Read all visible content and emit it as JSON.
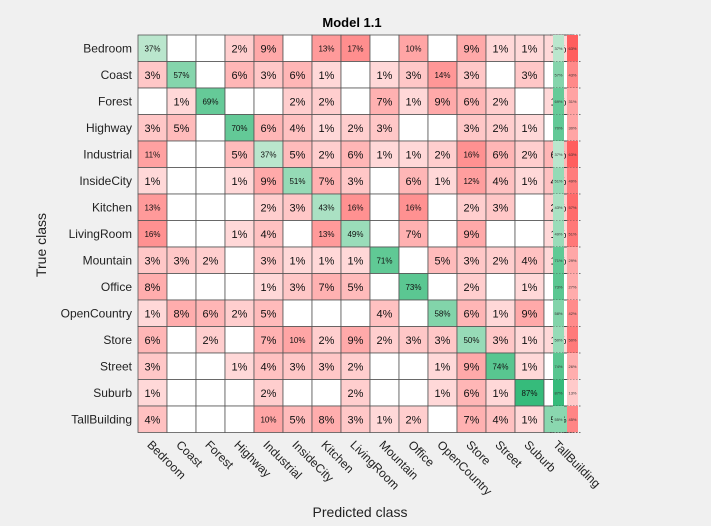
{
  "chart_data": {
    "type": "heatmap",
    "title": "Model 1.1",
    "xlabel": "Predicted class",
    "ylabel": "True class",
    "classes": [
      "Bedroom",
      "Coast",
      "Forest",
      "Highway",
      "Industrial",
      "InsideCity",
      "Kitchen",
      "LivingRoom",
      "Mountain",
      "Office",
      "OpenCountry",
      "Store",
      "Street",
      "Suburb",
      "TallBuilding"
    ],
    "values": [
      [
        37,
        null,
        null,
        2,
        9,
        null,
        13,
        17,
        null,
        10,
        null,
        9,
        1,
        1,
        1
      ],
      [
        3,
        57,
        null,
        6,
        3,
        6,
        1,
        null,
        1,
        3,
        14,
        3,
        null,
        3,
        null
      ],
      [
        null,
        1,
        69,
        null,
        null,
        2,
        2,
        null,
        7,
        1,
        9,
        6,
        2,
        null,
        1
      ],
      [
        3,
        5,
        null,
        70,
        6,
        4,
        1,
        2,
        3,
        null,
        null,
        3,
        2,
        1,
        null
      ],
      [
        11,
        null,
        null,
        5,
        37,
        5,
        2,
        6,
        1,
        1,
        2,
        16,
        6,
        2,
        6
      ],
      [
        1,
        null,
        null,
        1,
        9,
        51,
        7,
        3,
        null,
        6,
        1,
        12,
        4,
        1,
        4
      ],
      [
        13,
        null,
        null,
        null,
        2,
        3,
        43,
        16,
        null,
        16,
        null,
        2,
        3,
        null,
        2
      ],
      [
        16,
        null,
        null,
        1,
        4,
        null,
        13,
        49,
        null,
        7,
        null,
        9,
        null,
        null,
        1
      ],
      [
        3,
        3,
        2,
        null,
        3,
        1,
        1,
        1,
        71,
        null,
        5,
        3,
        2,
        4,
        1
      ],
      [
        8,
        null,
        null,
        null,
        1,
        3,
        7,
        5,
        null,
        73,
        null,
        2,
        null,
        1,
        null
      ],
      [
        1,
        8,
        6,
        2,
        5,
        null,
        null,
        null,
        4,
        null,
        58,
        6,
        1,
        9,
        null
      ],
      [
        6,
        null,
        2,
        null,
        7,
        10,
        2,
        9,
        2,
        3,
        3,
        50,
        3,
        1,
        1
      ],
      [
        3,
        null,
        null,
        1,
        4,
        3,
        3,
        2,
        null,
        null,
        1,
        9,
        74,
        1,
        null
      ],
      [
        1,
        null,
        null,
        null,
        2,
        null,
        null,
        2,
        null,
        null,
        1,
        6,
        1,
        87,
        null
      ],
      [
        4,
        null,
        null,
        null,
        10,
        5,
        8,
        3,
        1,
        2,
        null,
        7,
        4,
        1,
        55
      ]
    ],
    "row_summary": [
      [
        37,
        63
      ],
      [
        57,
        43
      ],
      [
        69,
        31
      ],
      [
        70,
        30
      ],
      [
        37,
        63
      ],
      [
        51,
        49
      ],
      [
        43,
        57
      ],
      [
        49,
        51
      ],
      [
        71,
        29
      ],
      [
        73,
        27
      ],
      [
        58,
        42
      ],
      [
        50,
        50
      ],
      [
        74,
        26
      ],
      [
        87,
        13
      ],
      [
        55,
        45
      ]
    ],
    "colors": {
      "correct_high": "#2eb876",
      "correct_low": "#bfe8d0",
      "error_high": "#ff5a5a",
      "error_low": "#fff0f0",
      "empty": "#ffffff",
      "grid": "#555555",
      "background": "#f0f0f0"
    }
  }
}
